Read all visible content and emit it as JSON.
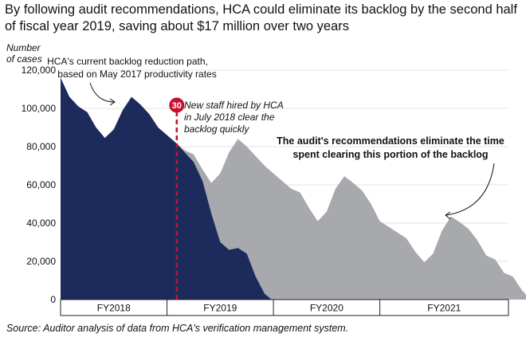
{
  "title_line1": "By following audit recommendations, HCA could eliminate its backlog by the second half",
  "title_line2": "of fiscal year 2019, saving about $17 million over two years",
  "source": "Source: Auditor analysis of data from HCA's verification management system.",
  "colors": {
    "current_path": "#1c2a5c",
    "audit_path": "#a7a9ac",
    "marker": "#c8102e",
    "axis": "#222222"
  },
  "chart_data": {
    "type": "area",
    "ylabel_line1": "Number",
    "ylabel_line2": "of cases",
    "ylim": [
      0,
      120000
    ],
    "yticks": [
      0,
      20000,
      40000,
      60000,
      80000,
      100000,
      120000
    ],
    "ytick_labels": [
      "0",
      "20,000",
      "40,000",
      "60,000",
      "80,000",
      "100,000",
      "120,000"
    ],
    "xlim": [
      0,
      50.5
    ],
    "x_unit": "months from July 2017",
    "fiscal_years": [
      {
        "label": "FY2018",
        "start": 0,
        "end": 12
      },
      {
        "label": "FY2019",
        "start": 12,
        "end": 24
      },
      {
        "label": "FY2020",
        "start": 24,
        "end": 36
      },
      {
        "label": "FY2021",
        "start": 36,
        "end": 50.5
      }
    ],
    "grid": true,
    "series": [
      {
        "points": [
          [
            0,
            116000
          ],
          [
            1,
            106000
          ],
          [
            2,
            101000
          ],
          [
            3,
            98000
          ],
          [
            4,
            90000
          ],
          [
            5,
            84500
          ],
          [
            6,
            89000
          ],
          [
            7,
            99000
          ],
          [
            8,
            106000
          ],
          [
            9,
            102000
          ],
          [
            10,
            97000
          ],
          [
            11,
            90000
          ],
          [
            12,
            86000
          ],
          [
            13,
            82000
          ],
          [
            14,
            78000
          ],
          [
            15,
            76000
          ],
          [
            16,
            68000
          ],
          [
            17,
            61000
          ],
          [
            18,
            66000
          ],
          [
            19,
            77000
          ],
          [
            20,
            84000
          ],
          [
            21,
            80000
          ],
          [
            22,
            75000
          ],
          [
            23,
            70000
          ],
          [
            24,
            66000
          ],
          [
            25,
            62000
          ],
          [
            26,
            58000
          ],
          [
            27,
            56000
          ],
          [
            28,
            48000
          ],
          [
            29,
            41000
          ],
          [
            30,
            46000
          ],
          [
            31,
            58000
          ],
          [
            32,
            64500
          ],
          [
            33,
            61000
          ],
          [
            34,
            57000
          ],
          [
            35,
            50000
          ],
          [
            36,
            41000
          ],
          [
            37,
            38000
          ],
          [
            38,
            35000
          ],
          [
            39,
            32000
          ],
          [
            40,
            25000
          ],
          [
            41,
            19500
          ],
          [
            42,
            24000
          ],
          [
            43,
            36000
          ],
          [
            44,
            43500
          ],
          [
            45,
            40500
          ],
          [
            46,
            37000
          ],
          [
            47,
            31000
          ],
          [
            48,
            23000
          ],
          [
            49,
            21000
          ],
          [
            50,
            14000
          ],
          [
            51,
            12000
          ],
          [
            52,
            5000
          ],
          [
            53,
            0
          ]
        ]
      },
      {
        "points": [
          [
            0,
            116000
          ],
          [
            1,
            106000
          ],
          [
            2,
            101000
          ],
          [
            3,
            98000
          ],
          [
            4,
            90000
          ],
          [
            5,
            84500
          ],
          [
            6,
            89000
          ],
          [
            7,
            99000
          ],
          [
            8,
            106000
          ],
          [
            9,
            102000
          ],
          [
            10,
            97000
          ],
          [
            11,
            90000
          ],
          [
            12,
            86000
          ],
          [
            13,
            82000
          ],
          [
            14,
            77000
          ],
          [
            15,
            72000
          ],
          [
            16,
            62000
          ],
          [
            17,
            45000
          ],
          [
            18,
            30000
          ],
          [
            19,
            26000
          ],
          [
            20,
            27000
          ],
          [
            21,
            24000
          ],
          [
            22,
            12000
          ],
          [
            23,
            3000
          ],
          [
            23.8,
            0
          ]
        ]
      }
    ],
    "marker": {
      "x": 13.1,
      "label": "30"
    },
    "annotations": {
      "current_path": [
        "HCA's current backlog reduction path,",
        "based on May 2017 productivity rates"
      ],
      "new_staff": [
        "New staff hired by HCA",
        "in July 2018 clear the",
        "backlog quickly"
      ],
      "audit_line1": "The audit's recommendations eliminate the time",
      "audit_line2": "spent clearing this portion of the backlog"
    }
  }
}
